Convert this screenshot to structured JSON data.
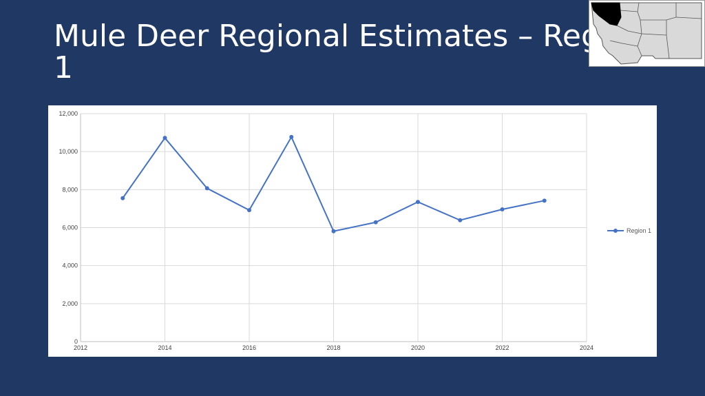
{
  "slide": {
    "title": "Mule Deer Regional Estimates – Region 1",
    "background": "#203864"
  },
  "map": {
    "icon": "montana-regions-map-icon",
    "highlight_color": "#000000",
    "region_fill": "#d9d9d9"
  },
  "chart_data": {
    "type": "line",
    "x": [
      2013,
      2014,
      2015,
      2016,
      2017,
      2018,
      2019,
      2020,
      2021,
      2022,
      2023
    ],
    "series": [
      {
        "name": "Region 1",
        "color": "#4472c4",
        "values": [
          7550,
          10720,
          8070,
          6920,
          10770,
          5810,
          6280,
          7350,
          6390,
          6960,
          7420
        ]
      }
    ],
    "xlim": [
      2012,
      2024
    ],
    "ylim": [
      0,
      12000
    ],
    "x_ticks": [
      "2012",
      "2014",
      "2016",
      "2018",
      "2020",
      "2022",
      "2024"
    ],
    "y_ticks": [
      "0",
      "2,000",
      "4,000",
      "6,000",
      "8,000",
      "10,000",
      "12,000"
    ],
    "grid": true,
    "legend": "right"
  }
}
